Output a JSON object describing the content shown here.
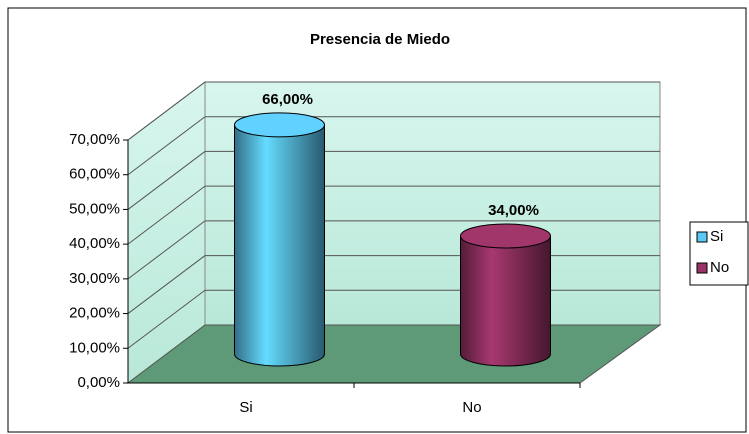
{
  "chart_data": {
    "type": "bar",
    "title": "Presencia de Miedo",
    "categories": [
      "Si",
      "No"
    ],
    "values": [
      66,
      34
    ],
    "value_labels": [
      "66,00%",
      "34,00%"
    ],
    "colors": [
      "#5cc8f5",
      "#993366"
    ],
    "ylim": [
      0,
      70
    ],
    "yticks": [
      {
        "value": 0,
        "label": "0,00%"
      },
      {
        "value": 10,
        "label": "10,00%"
      },
      {
        "value": 20,
        "label": "20,00%"
      },
      {
        "value": 30,
        "label": "30,00%"
      },
      {
        "value": 40,
        "label": "40,00%"
      },
      {
        "value": 50,
        "label": "50,00%"
      },
      {
        "value": 60,
        "label": "60,00%"
      },
      {
        "value": 70,
        "label": "70,00%"
      }
    ],
    "grid": true,
    "legend": "right"
  }
}
